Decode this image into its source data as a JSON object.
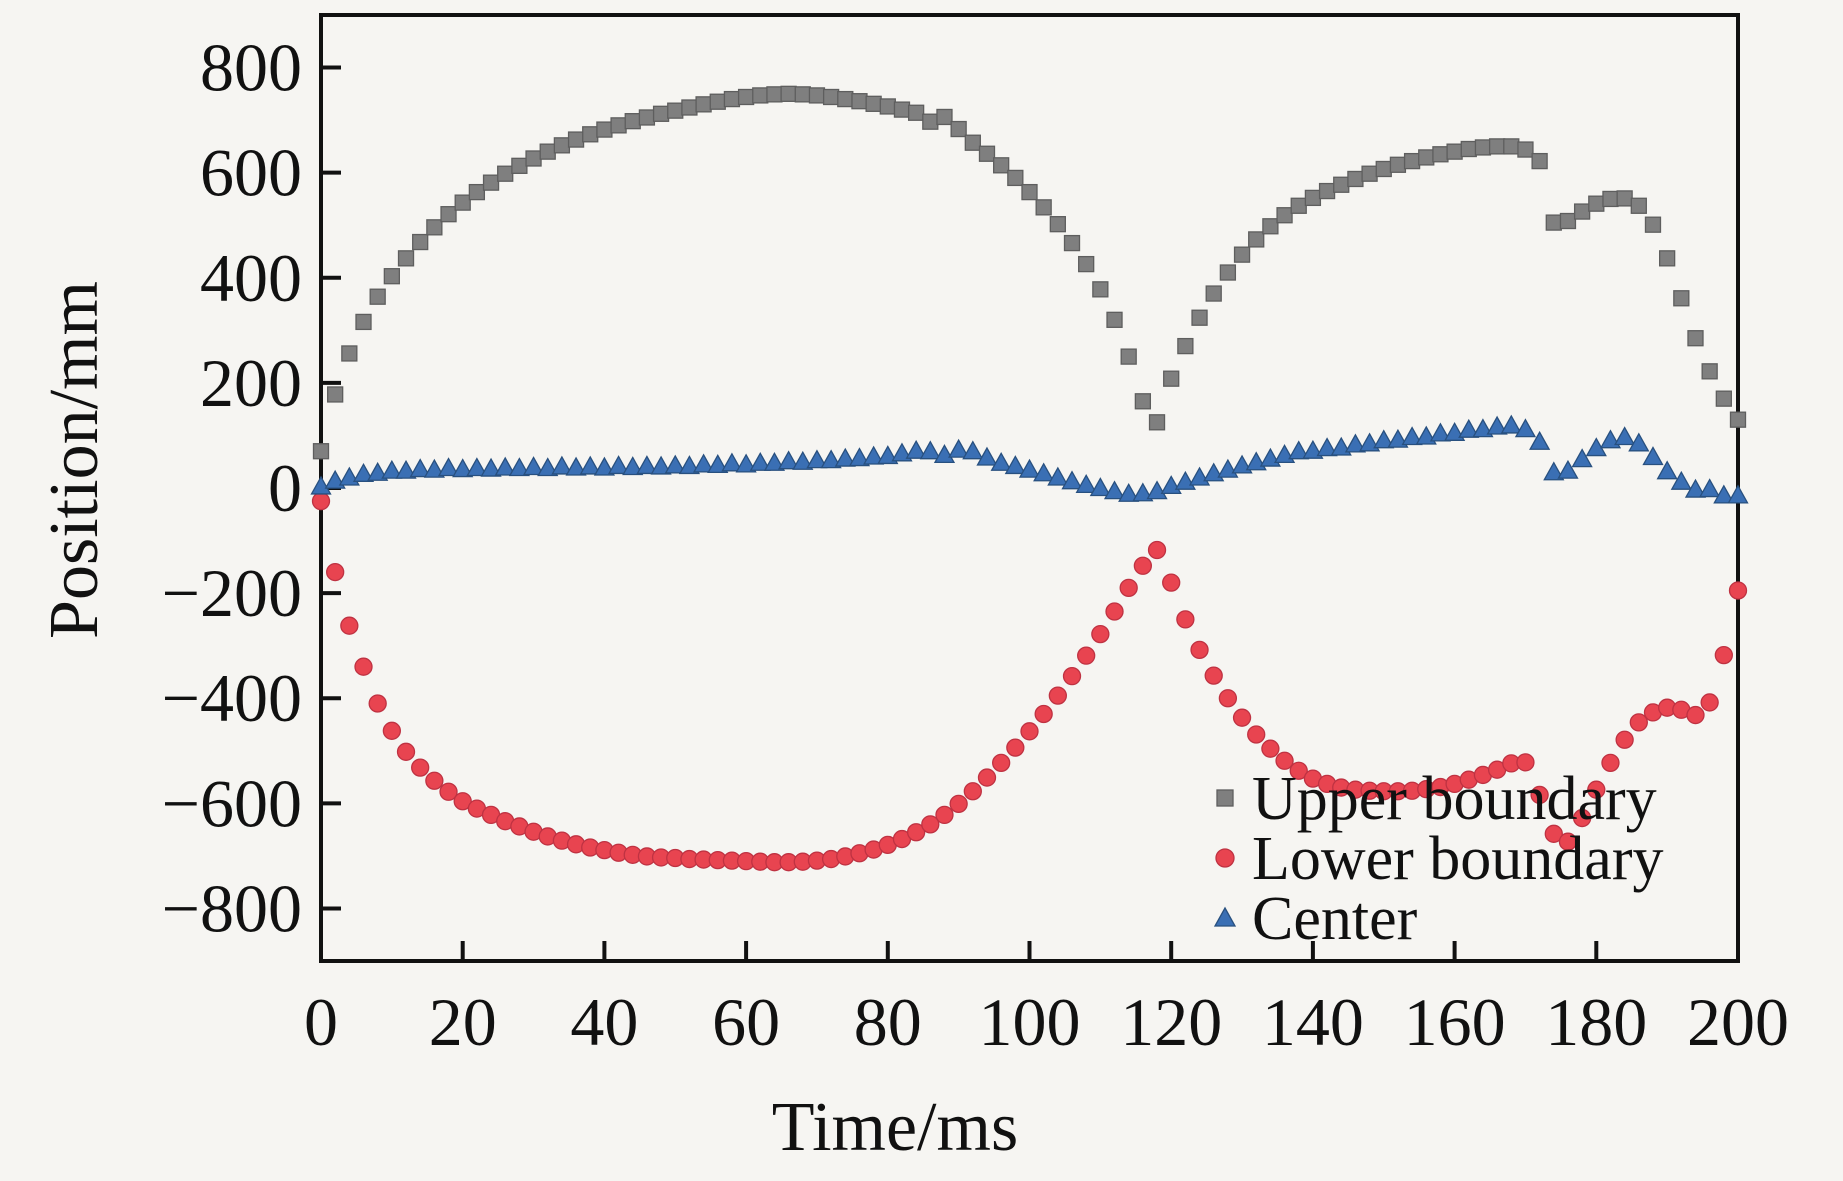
{
  "figure": {
    "background": "#f6f5f2",
    "axis_color": "#111111"
  },
  "chart_data": {
    "type": "scatter",
    "title": "",
    "xlabel": "Time/ms",
    "ylabel": "Position/mm",
    "xlim": [
      0,
      200
    ],
    "ylim": [
      -900,
      900
    ],
    "x_ticks": [
      0,
      20,
      40,
      60,
      80,
      100,
      120,
      140,
      160,
      180,
      200
    ],
    "y_ticks": [
      800,
      600,
      400,
      200,
      0,
      -200,
      -400,
      -600,
      -800
    ],
    "grid": false,
    "legend_position": "inside-bottom-right",
    "x_units": "ms",
    "y_units": "mm",
    "x": [
      0,
      2,
      4,
      6,
      8,
      10,
      12,
      14,
      16,
      18,
      20,
      22,
      24,
      26,
      28,
      30,
      32,
      34,
      36,
      38,
      40,
      42,
      44,
      46,
      48,
      50,
      52,
      54,
      56,
      58,
      60,
      62,
      64,
      66,
      68,
      70,
      72,
      74,
      76,
      78,
      80,
      82,
      84,
      86,
      88,
      90,
      92,
      94,
      96,
      98,
      100,
      102,
      104,
      106,
      108,
      110,
      112,
      114,
      116,
      118,
      120,
      122,
      124,
      126,
      128,
      130,
      132,
      134,
      136,
      138,
      140,
      142,
      144,
      146,
      148,
      150,
      152,
      154,
      156,
      158,
      160,
      162,
      164,
      166,
      168,
      170,
      172,
      174,
      176,
      178,
      180,
      182,
      184,
      186,
      188,
      190,
      192,
      194,
      196,
      198,
      200
    ],
    "series": [
      {
        "name": "Upper boundary",
        "marker": "square",
        "color": "#7f7f7f",
        "edge_color": "#5e5e5e",
        "values": [
          70,
          178,
          256,
          316,
          364,
          403,
          437,
          468,
          496,
          521,
          543,
          563,
          581,
          598,
          613,
          627,
          640,
          652,
          663,
          673,
          682,
          690,
          698,
          705,
          712,
          718,
          724,
          730,
          735,
          740,
          744,
          747,
          749,
          750,
          749,
          747,
          744,
          740,
          736,
          731,
          726,
          720,
          714,
          697,
          706,
          683,
          657,
          636,
          614,
          590,
          563,
          534,
          502,
          466,
          426,
          378,
          320,
          250,
          165,
          125,
          208,
          270,
          324,
          370,
          410,
          444,
          473,
          498,
          519,
          537,
          552,
          565,
          577,
          588,
          598,
          607,
          615,
          622,
          629,
          635,
          640,
          645,
          648,
          650,
          650,
          644,
          622,
          505,
          508,
          526,
          541,
          550,
          551,
          537,
          501,
          437,
          361,
          285,
          222,
          170,
          130
        ]
      },
      {
        "name": "Lower boundary",
        "marker": "circle",
        "color": "#e84450",
        "edge_color": "#bf3242",
        "values": [
          -25,
          -160,
          -262,
          -340,
          -410,
          -462,
          -502,
          -532,
          -557,
          -578,
          -596,
          -610,
          -622,
          -634,
          -644,
          -654,
          -663,
          -671,
          -678,
          -684,
          -689,
          -694,
          -698,
          -701,
          -703,
          -704,
          -706,
          -707,
          -708,
          -709,
          -710,
          -711,
          -712,
          -712,
          -711,
          -709,
          -706,
          -701,
          -695,
          -688,
          -679,
          -668,
          -655,
          -640,
          -622,
          -601,
          -577,
          -551,
          -523,
          -494,
          -463,
          -430,
          -395,
          -358,
          -319,
          -278,
          -235,
          -190,
          -148,
          -118,
          -180,
          -250,
          -308,
          -357,
          -400,
          -437,
          -469,
          -496,
          -519,
          -538,
          -553,
          -563,
          -570,
          -574,
          -576,
          -577,
          -577,
          -576,
          -573,
          -569,
          -563,
          -555,
          -546,
          -536,
          -524,
          -522,
          -584,
          -658,
          -673,
          -628,
          -574,
          -523,
          -479,
          -446,
          -427,
          -418,
          -422,
          -432,
          -408,
          -318,
          -195
        ]
      },
      {
        "name": "Center",
        "marker": "triangle-up",
        "color": "#3a6fb4",
        "edge_color": "#28507f",
        "values": [
          3,
          14,
          20,
          27,
          29,
          33,
          33,
          36,
          35,
          38,
          36,
          38,
          37,
          39,
          38,
          40,
          38,
          41,
          39,
          41,
          39,
          42,
          40,
          42,
          41,
          43,
          42,
          45,
          44,
          47,
          45,
          48,
          48,
          51,
          50,
          53,
          53,
          56,
          57,
          60,
          61,
          66,
          71,
          70,
          63,
          73,
          70,
          58,
          48,
          42,
          35,
          28,
          20,
          13,
          6,
          0,
          -6,
          -11,
          -10,
          -6,
          4,
          12,
          20,
          28,
          35,
          43,
          49,
          56,
          63,
          70,
          71,
          76,
          77,
          83,
          85,
          91,
          92,
          97,
          98,
          104,
          105,
          111,
          112,
          117,
          119,
          112,
          88,
          30,
          33,
          55,
          76,
          91,
          97,
          85,
          59,
          32,
          12,
          -3,
          -2,
          -14,
          -14
        ]
      }
    ]
  }
}
